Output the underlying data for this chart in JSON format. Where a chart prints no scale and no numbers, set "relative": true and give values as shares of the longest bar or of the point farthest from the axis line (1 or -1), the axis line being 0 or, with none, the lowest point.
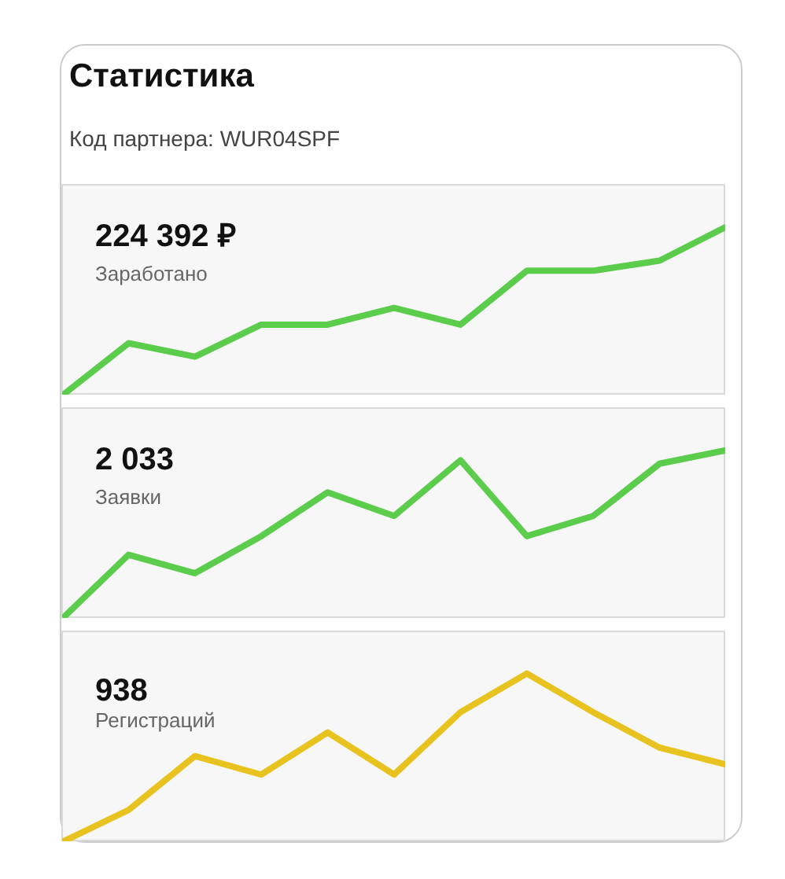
{
  "chart_data": [
    {
      "type": "other",
      "title": "Статистика",
      "subtitle": "Код партнера: WUR04SPF"
    },
    {
      "type": "line",
      "title": "224 392 ₽",
      "subtitle": "Заработано",
      "relative": true,
      "color": "#5ccc4c",
      "categories": [
        null,
        null,
        null,
        null,
        null,
        null,
        null,
        null,
        null,
        null,
        null
      ],
      "values": [
        0,
        0.31,
        0.23,
        0.42,
        0.42,
        0.52,
        0.42,
        0.74,
        0.74,
        0.8,
        1
      ]
    },
    {
      "type": "line",
      "title": "2 033",
      "subtitle": "Заявки",
      "relative": true,
      "color": "#5ccc4c",
      "categories": [
        null,
        null,
        null,
        null,
        null,
        null,
        null,
        null,
        null,
        null,
        null
      ],
      "values": [
        0,
        0.38,
        0.27,
        0.49,
        0.75,
        0.61,
        0.94,
        0.49,
        0.61,
        0.92,
        1
      ]
    },
    {
      "type": "line",
      "title": "938",
      "subtitle": "Регистраций",
      "relative": true,
      "color": "#e8c21e",
      "categories": [
        null,
        null,
        null,
        null,
        null,
        null,
        null,
        null,
        null,
        null,
        null
      ],
      "values": [
        0,
        0.19,
        0.51,
        0.4,
        0.65,
        0.4,
        0.77,
        1,
        0.77,
        0.56,
        0.46
      ]
    }
  ]
}
